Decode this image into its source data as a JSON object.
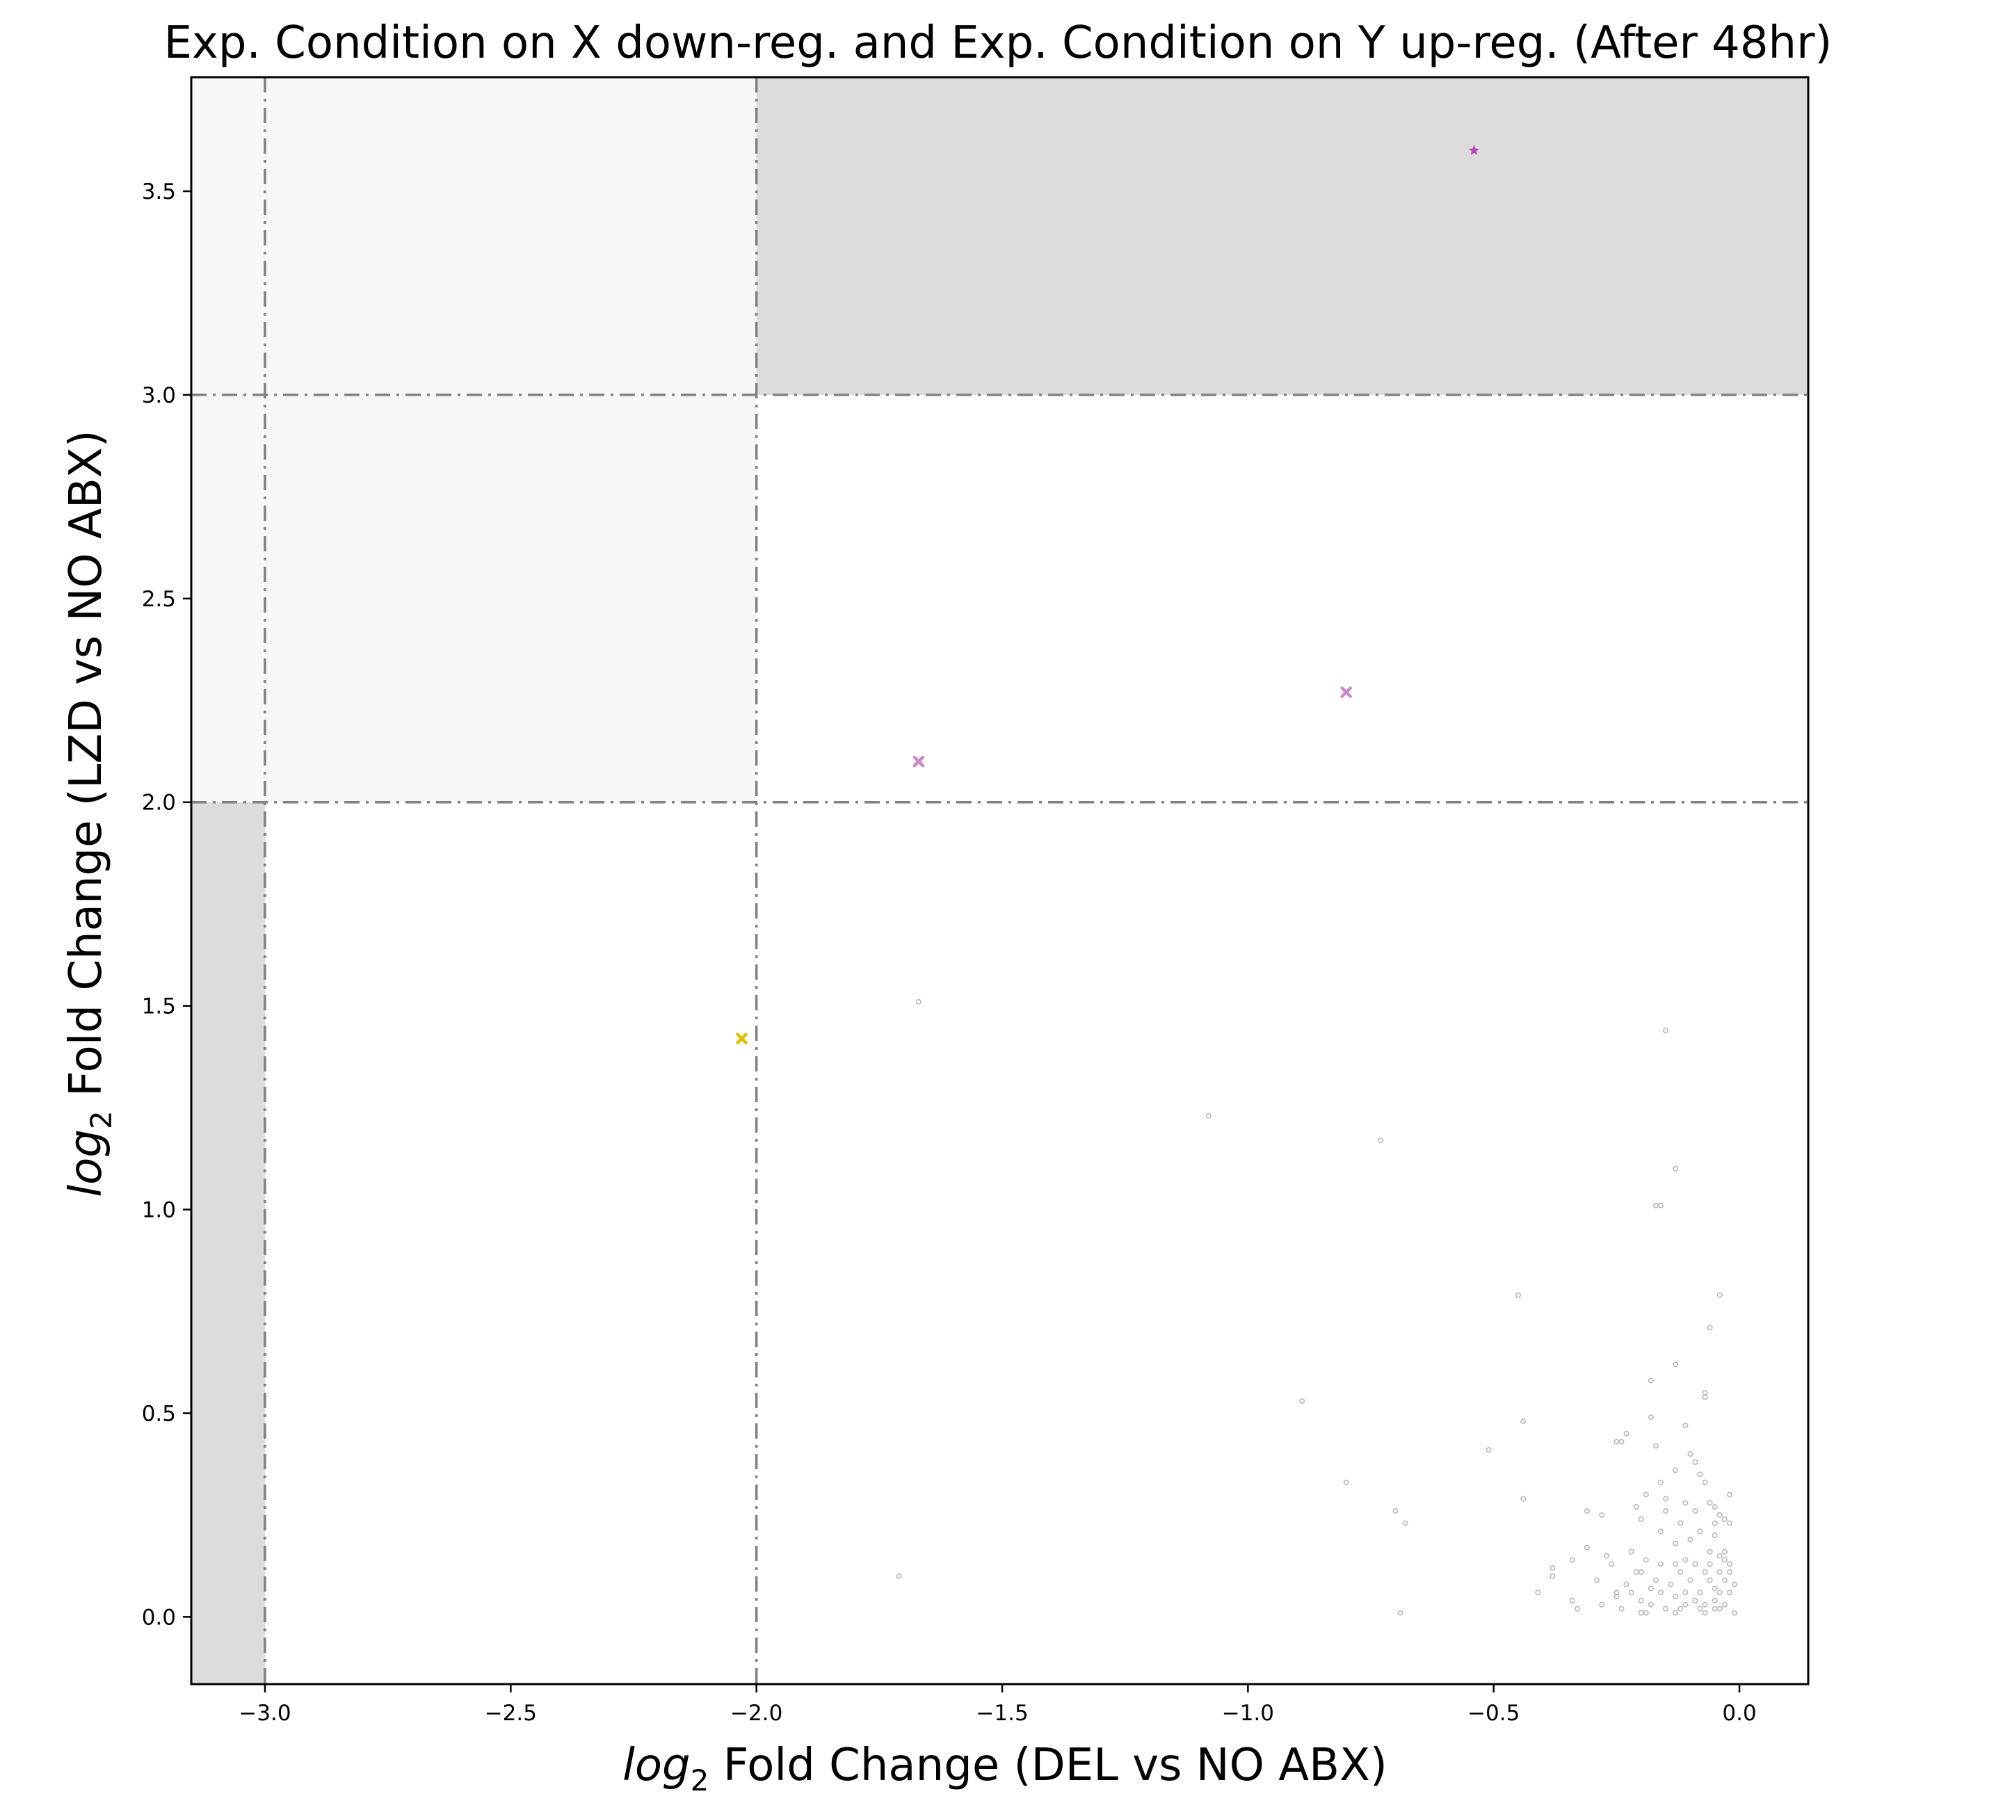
{
  "chart_data": {
    "type": "scatter",
    "title": "Exp. Condition on X down-reg. and Exp. Condition on Y up-reg. (After 48hr)",
    "xlabel": {
      "italic": "log",
      "sub": "2",
      "rest": " Fold Change (DEL vs NO ABX)"
    },
    "ylabel": {
      "italic": "log",
      "sub": "2",
      "rest": " Fold Change (LZD vs NO ABX)"
    },
    "xlim": [
      -3.15,
      0.14
    ],
    "ylim": [
      -0.165,
      3.78
    ],
    "xticks": [
      -3.0,
      -2.5,
      -2.0,
      -1.5,
      -1.0,
      -0.5,
      0.0
    ],
    "xtick_labels": [
      "−3.0",
      "−2.5",
      "−2.0",
      "−1.5",
      "−1.0",
      "−0.5",
      "0.0"
    ],
    "yticks": [
      0.0,
      0.5,
      1.0,
      1.5,
      2.0,
      2.5,
      3.0,
      3.5
    ],
    "ytick_labels": [
      "0.0",
      "0.5",
      "1.0",
      "1.5",
      "2.0",
      "2.5",
      "3.0",
      "3.5"
    ],
    "grid": false,
    "shaded_regions": [
      {
        "x": [
          -3.15,
          -3.0
        ],
        "y": [
          -0.165,
          2.0
        ],
        "color": "#dcdcdc"
      },
      {
        "x": [
          -3.15,
          -2.0
        ],
        "y": [
          2.0,
          3.78
        ],
        "color": "#f7f7f7"
      },
      {
        "x": [
          -2.0,
          0.14
        ],
        "y": [
          3.0,
          3.78
        ],
        "color": "#dcdcdc"
      }
    ],
    "reference_lines": [
      {
        "axis": "x",
        "value": -3.0,
        "style": "dashdot",
        "color": "#808080"
      },
      {
        "axis": "x",
        "value": -2.0,
        "style": "dashdot",
        "color": "#808080"
      },
      {
        "axis": "y",
        "value": 2.0,
        "style": "dashdot",
        "color": "#808080"
      },
      {
        "axis": "y",
        "value": 3.0,
        "style": "dashdot",
        "color": "#808080"
      }
    ],
    "highlighted_points": [
      {
        "x": -0.54,
        "y": 3.6,
        "marker": "star",
        "color": "#c040c0"
      },
      {
        "x": -0.8,
        "y": 2.27,
        "marker": "x",
        "color": "#cc88cc"
      },
      {
        "x": -1.67,
        "y": 2.1,
        "marker": "x",
        "color": "#cc88cc"
      },
      {
        "x": -2.03,
        "y": 1.42,
        "marker": "x",
        "color": "#e0c000"
      }
    ],
    "background_points_color": "#b8b8b8",
    "background_points": [
      [
        -1.67,
        1.51
      ],
      [
        -0.15,
        1.44
      ],
      [
        -1.08,
        1.23
      ],
      [
        -0.73,
        1.17
      ],
      [
        -0.13,
        1.1
      ],
      [
        -0.17,
        1.01
      ],
      [
        -0.16,
        1.01
      ],
      [
        -0.45,
        0.79
      ],
      [
        -0.04,
        0.79
      ],
      [
        -0.06,
        0.71
      ],
      [
        -0.13,
        0.62
      ],
      [
        -0.18,
        0.58
      ],
      [
        -0.07,
        0.55
      ],
      [
        -0.07,
        0.54
      ],
      [
        -0.89,
        0.53
      ],
      [
        -0.18,
        0.49
      ],
      [
        -0.44,
        0.48
      ],
      [
        -0.11,
        0.47
      ],
      [
        -0.24,
        0.43
      ],
      [
        -0.25,
        0.43
      ],
      [
        -0.23,
        0.45
      ],
      [
        -0.17,
        0.42
      ],
      [
        -0.51,
        0.41
      ],
      [
        -0.1,
        0.4
      ],
      [
        -0.09,
        0.38
      ],
      [
        -0.13,
        0.36
      ],
      [
        -0.08,
        0.35
      ],
      [
        -0.8,
        0.33
      ],
      [
        -0.16,
        0.33
      ],
      [
        -0.07,
        0.33
      ],
      [
        -0.19,
        0.3
      ],
      [
        -0.44,
        0.29
      ],
      [
        -0.15,
        0.29
      ],
      [
        -0.11,
        0.28
      ],
      [
        -0.06,
        0.28
      ],
      [
        -0.02,
        0.3
      ],
      [
        -0.05,
        0.27
      ],
      [
        -0.7,
        0.26
      ],
      [
        -0.31,
        0.26
      ],
      [
        -0.21,
        0.27
      ],
      [
        -0.15,
        0.26
      ],
      [
        -0.09,
        0.26
      ],
      [
        -0.04,
        0.25
      ],
      [
        -0.28,
        0.25
      ],
      [
        -0.03,
        0.24
      ],
      [
        -0.68,
        0.23
      ],
      [
        -0.2,
        0.24
      ],
      [
        -0.12,
        0.23
      ],
      [
        -0.05,
        0.23
      ],
      [
        -0.02,
        0.23
      ],
      [
        -0.16,
        0.21
      ],
      [
        -0.08,
        0.21
      ],
      [
        -0.05,
        0.2
      ],
      [
        -0.1,
        0.19
      ],
      [
        -0.13,
        0.18
      ],
      [
        -0.31,
        0.17
      ],
      [
        -0.22,
        0.16
      ],
      [
        -0.06,
        0.16
      ],
      [
        -0.03,
        0.16
      ],
      [
        -0.04,
        0.15
      ],
      [
        -0.27,
        0.15
      ],
      [
        -0.19,
        0.14
      ],
      [
        -0.11,
        0.14
      ],
      [
        -0.03,
        0.14
      ],
      [
        -0.34,
        0.14
      ],
      [
        -0.26,
        0.13
      ],
      [
        -0.16,
        0.13
      ],
      [
        -0.13,
        0.13
      ],
      [
        -0.09,
        0.13
      ],
      [
        -0.06,
        0.13
      ],
      [
        -0.02,
        0.13
      ],
      [
        -0.38,
        0.12
      ],
      [
        -0.2,
        0.11
      ],
      [
        -0.21,
        0.11
      ],
      [
        -0.12,
        0.11
      ],
      [
        -0.07,
        0.11
      ],
      [
        -0.04,
        0.11
      ],
      [
        -0.02,
        0.11
      ],
      [
        -0.38,
        0.1
      ],
      [
        -1.71,
        0.1
      ],
      [
        -0.29,
        0.09
      ],
      [
        -0.17,
        0.09
      ],
      [
        -0.1,
        0.09
      ],
      [
        -0.06,
        0.09
      ],
      [
        -0.03,
        0.09
      ],
      [
        -0.23,
        0.08
      ],
      [
        -0.14,
        0.08
      ],
      [
        -0.05,
        0.07
      ],
      [
        -0.01,
        0.08
      ],
      [
        -0.18,
        0.07
      ],
      [
        -0.41,
        0.06
      ],
      [
        -0.25,
        0.06
      ],
      [
        -0.22,
        0.06
      ],
      [
        -0.16,
        0.06
      ],
      [
        -0.11,
        0.06
      ],
      [
        -0.08,
        0.06
      ],
      [
        -0.04,
        0.06
      ],
      [
        -0.02,
        0.06
      ],
      [
        -0.13,
        0.05
      ],
      [
        -0.25,
        0.05
      ],
      [
        -0.2,
        0.04
      ],
      [
        -0.09,
        0.04
      ],
      [
        -0.05,
        0.04
      ],
      [
        -0.34,
        0.04
      ],
      [
        -0.28,
        0.03
      ],
      [
        -0.18,
        0.03
      ],
      [
        -0.11,
        0.03
      ],
      [
        -0.07,
        0.03
      ],
      [
        -0.03,
        0.03
      ],
      [
        -0.33,
        0.02
      ],
      [
        -0.24,
        0.02
      ],
      [
        -0.15,
        0.02
      ],
      [
        -0.12,
        0.02
      ],
      [
        -0.08,
        0.02
      ],
      [
        -0.05,
        0.02
      ],
      [
        -0.04,
        0.02
      ],
      [
        -0.19,
        0.01
      ],
      [
        -0.2,
        0.01
      ],
      [
        -0.13,
        0.01
      ],
      [
        -0.07,
        0.01
      ],
      [
        -0.01,
        0.01
      ],
      [
        -0.69,
        0.01
      ]
    ]
  }
}
